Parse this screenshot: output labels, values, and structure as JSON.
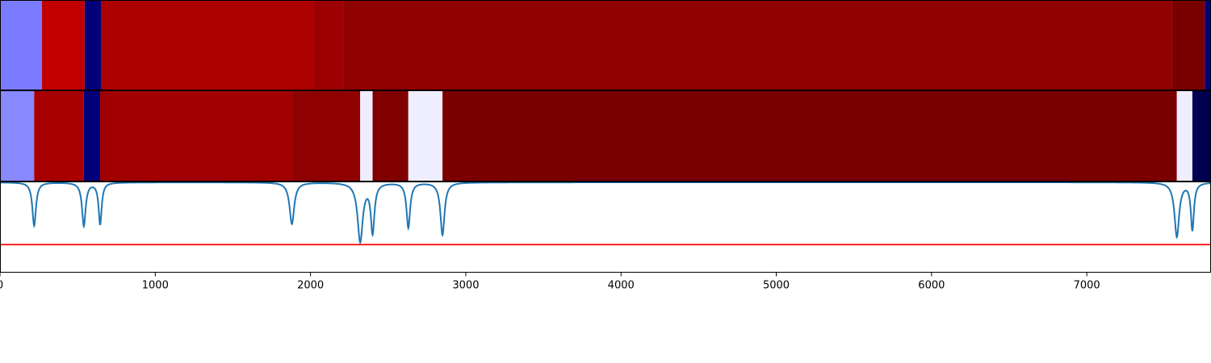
{
  "chart_data": [
    {
      "type": "heatmap",
      "title": "",
      "xlim": [
        0,
        7800
      ],
      "segments": [
        {
          "start": 0,
          "end": 270,
          "color": "#7b7bff"
        },
        {
          "start": 270,
          "end": 545,
          "color": "#c20000"
        },
        {
          "start": 545,
          "end": 650,
          "color": "#00007a"
        },
        {
          "start": 650,
          "end": 2020,
          "color": "#ac0000"
        },
        {
          "start": 2020,
          "end": 2215,
          "color": "#9d0000"
        },
        {
          "start": 2215,
          "end": 7550,
          "color": "#8f0000"
        },
        {
          "start": 7550,
          "end": 7760,
          "color": "#7a0000"
        },
        {
          "start": 7760,
          "end": 7800,
          "color": "#00007a"
        }
      ]
    },
    {
      "type": "heatmap",
      "title": "",
      "xlim": [
        0,
        7800
      ],
      "segments": [
        {
          "start": 0,
          "end": 220,
          "color": "#8888ff"
        },
        {
          "start": 220,
          "end": 540,
          "color": "#a80000"
        },
        {
          "start": 540,
          "end": 645,
          "color": "#00007a"
        },
        {
          "start": 645,
          "end": 1880,
          "color": "#a00000"
        },
        {
          "start": 1880,
          "end": 2320,
          "color": "#8f0000"
        },
        {
          "start": 2320,
          "end": 2400,
          "color": "#eeeeff"
        },
        {
          "start": 2400,
          "end": 2630,
          "color": "#800000"
        },
        {
          "start": 2630,
          "end": 2850,
          "color": "#eeeeff"
        },
        {
          "start": 2850,
          "end": 7580,
          "color": "#7a0000"
        },
        {
          "start": 7580,
          "end": 7680,
          "color": "#eeeeff"
        },
        {
          "start": 7680,
          "end": 7800,
          "color": "#000050"
        }
      ]
    },
    {
      "type": "line",
      "title": "",
      "xlabel": "",
      "ylabel": "",
      "xlim": [
        0,
        7800
      ],
      "ylim": [
        0,
        1
      ],
      "xticks": [
        0,
        1000,
        2000,
        3000,
        4000,
        5000,
        6000,
        7000
      ],
      "series": [
        {
          "color": "#1f77b4",
          "baseline": 1.0,
          "dips": [
            {
              "x": 220,
              "depth": 0.48,
              "width": 14
            },
            {
              "x": 540,
              "depth": 0.48,
              "width": 14
            },
            {
              "x": 645,
              "depth": 0.46,
              "width": 12
            },
            {
              "x": 1880,
              "depth": 0.46,
              "width": 18
            },
            {
              "x": 2320,
              "depth": 0.65,
              "width": 20
            },
            {
              "x": 2400,
              "depth": 0.54,
              "width": 14
            },
            {
              "x": 2630,
              "depth": 0.5,
              "width": 14
            },
            {
              "x": 2850,
              "depth": 0.58,
              "width": 16
            },
            {
              "x": 7580,
              "depth": 0.6,
              "width": 18
            },
            {
              "x": 7680,
              "depth": 0.52,
              "width": 12
            }
          ]
        },
        {
          "color": "#ff0000",
          "constant": 0.31
        }
      ]
    }
  ]
}
